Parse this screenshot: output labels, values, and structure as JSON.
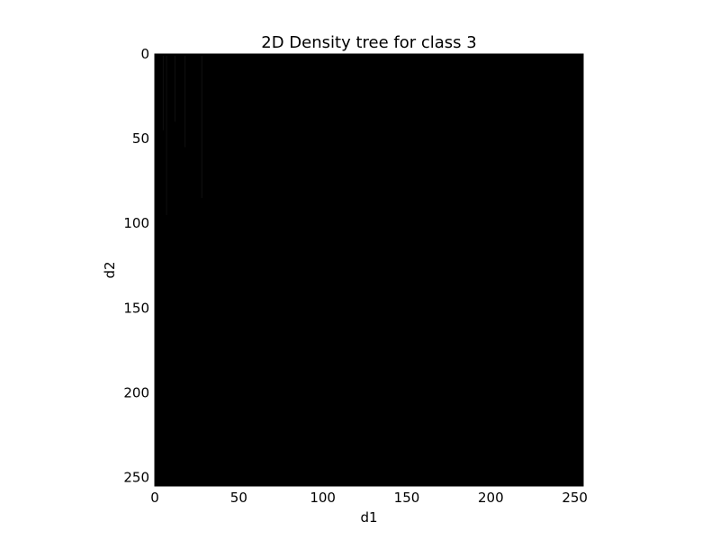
{
  "chart_data": {
    "type": "heatmap",
    "title": "2D Density tree for class 3",
    "xlabel": "d1",
    "ylabel": "d2",
    "xlim": [
      0,
      255
    ],
    "ylim": [
      255,
      0
    ],
    "y_inverted": true,
    "xticks": [
      0,
      50,
      100,
      150,
      200,
      250
    ],
    "yticks": [
      0,
      50,
      100,
      150,
      200,
      250
    ],
    "fill_color": "#000000",
    "grid": false,
    "legend": "none",
    "faint_vertical_lines": [
      {
        "x": 5,
        "y_end": 45
      },
      {
        "x": 7,
        "y_end": 95
      },
      {
        "x": 12,
        "y_end": 40
      },
      {
        "x": 18,
        "y_end": 55
      },
      {
        "x": 28,
        "y_end": 85
      }
    ]
  }
}
